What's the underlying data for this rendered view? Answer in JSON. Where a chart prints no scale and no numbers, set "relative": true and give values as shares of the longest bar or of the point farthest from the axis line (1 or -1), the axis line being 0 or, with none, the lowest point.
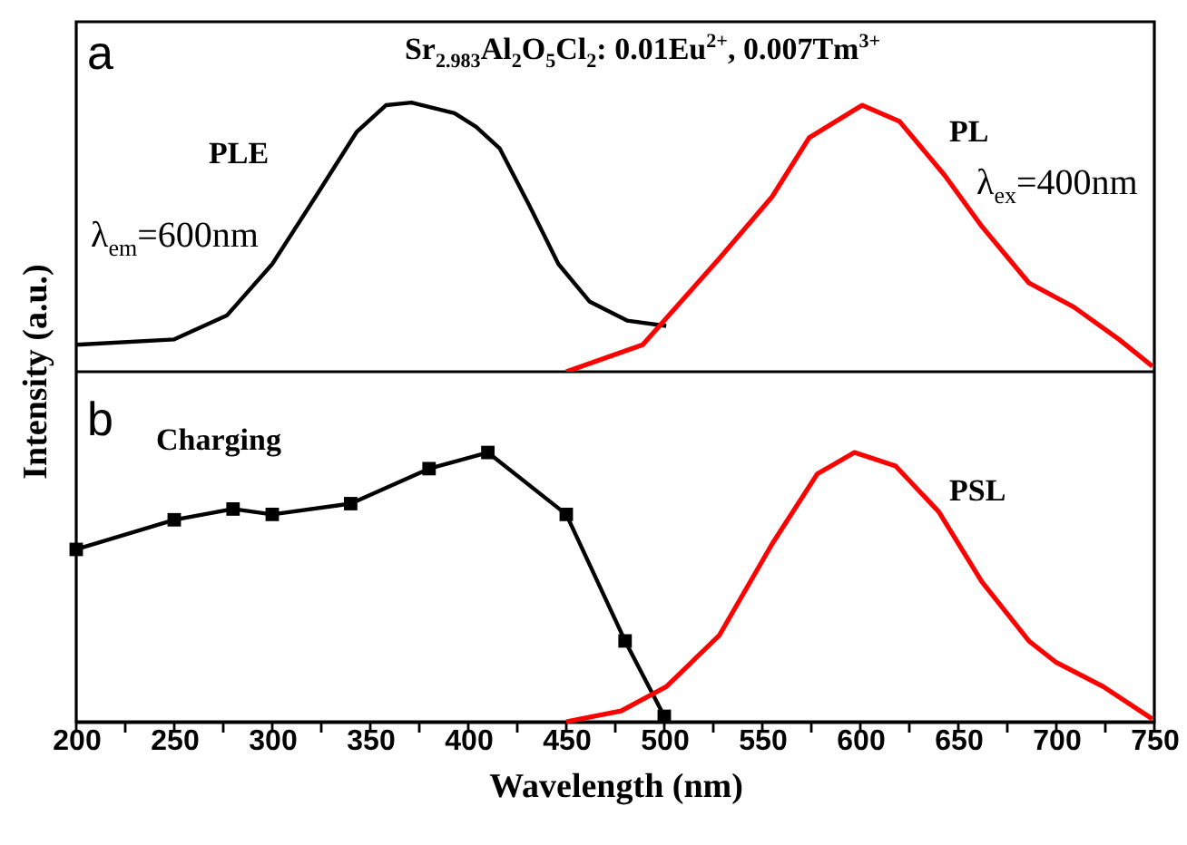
{
  "chart_data": [
    {
      "type": "line",
      "title": "Sr$_{2.983}$Al$_{2}$O$_{5}$Cl$_{2}$: 0.01Eu$^{2+}$, 0.007Tm$^{3+}$",
      "ylabel": "Intensity (a.u.)",
      "relative": true,
      "xlim": [
        200,
        750
      ],
      "tick_labels": false,
      "legend": false,
      "grid": false,
      "annotations": [
        "a",
        "λ$_{em}$=600nm",
        "λ$_{ex}$=400nm"
      ],
      "series": [
        {
          "name": "PLE",
          "color": "#000000",
          "marker": "none",
          "x": [
            200,
            250,
            277,
            300,
            323,
            343,
            358,
            371,
            393,
            404,
            416,
            431,
            446,
            462,
            481,
            501
          ],
          "values": [
            0.1,
            0.12,
            0.21,
            0.4,
            0.66,
            0.89,
            0.99,
            1.0,
            0.96,
            0.91,
            0.83,
            0.62,
            0.4,
            0.26,
            0.19,
            0.17
          ]
        },
        {
          "name": "PL",
          "color": "#ff0000",
          "marker": "none",
          "x": [
            450,
            489,
            528,
            555,
            574,
            601,
            620,
            643,
            662,
            686,
            709,
            732,
            749
          ],
          "values": [
            0.0,
            0.1,
            0.42,
            0.65,
            0.87,
            0.99,
            0.93,
            0.73,
            0.54,
            0.33,
            0.24,
            0.12,
            0.02
          ]
        }
      ]
    },
    {
      "type": "line",
      "xlabel": "Wavelength (nm)",
      "relative": true,
      "xlim": [
        200,
        750
      ],
      "xticks": [
        200,
        {
          "value": 225,
          "label": null
        },
        250,
        {
          "value": 275,
          "label": null
        },
        300,
        {
          "value": 325,
          "label": null
        },
        350,
        {
          "value": 375,
          "label": null
        },
        400,
        {
          "value": 425,
          "label": null
        },
        450,
        {
          "value": 475,
          "label": null
        },
        500,
        {
          "value": 525,
          "label": null
        },
        550,
        {
          "value": 575,
          "label": null
        },
        600,
        {
          "value": 625,
          "label": null
        },
        650,
        {
          "value": 675,
          "label": null
        },
        700,
        {
          "value": 725,
          "label": null
        },
        750
      ],
      "tick_labels": "x",
      "legend": false,
      "grid": false,
      "annotations": [
        "b"
      ],
      "series": [
        {
          "name": "Charging",
          "color": "#000000",
          "marker": "square",
          "x": [
            200,
            250,
            280,
            300,
            340,
            380,
            410,
            450,
            480,
            500
          ],
          "values": [
            0.64,
            0.75,
            0.79,
            0.77,
            0.81,
            0.94,
            1.0,
            0.77,
            0.3,
            0.02
          ]
        },
        {
          "name": "PSL",
          "color": "#ff0000",
          "marker": "none",
          "x": [
            450,
            478,
            501,
            528,
            555,
            578,
            597,
            618,
            640,
            662,
            686,
            700,
            724,
            749
          ],
          "values": [
            0.0,
            0.04,
            0.13,
            0.32,
            0.66,
            0.92,
            1.0,
            0.95,
            0.78,
            0.52,
            0.3,
            0.22,
            0.13,
            0.01
          ]
        }
      ]
    }
  ]
}
